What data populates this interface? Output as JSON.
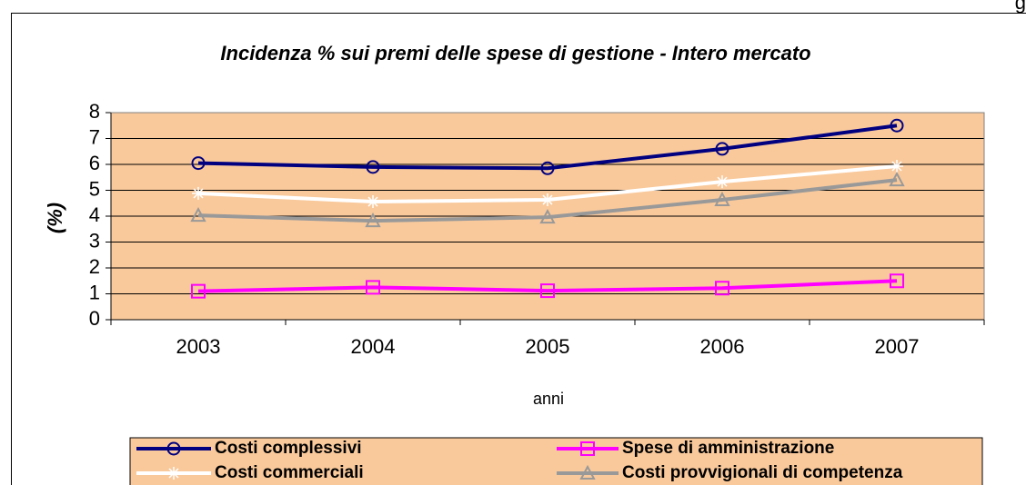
{
  "corner_text": "g",
  "chart_data": {
    "type": "line",
    "title": "Incidenza % sui premi delle spese di gestione - Intero mercato",
    "y_label": "(%)",
    "x_label": "anni",
    "categories": [
      "2003",
      "2004",
      "2005",
      "2006",
      "2007"
    ],
    "series": [
      {
        "name": "Costi complessivi",
        "color": "#000080",
        "marker": "circle",
        "values": [
          6.05,
          5.9,
          5.85,
          6.6,
          7.5
        ]
      },
      {
        "name": "Spese di amministrazione",
        "color": "#ff00ff",
        "marker": "square",
        "values": [
          1.1,
          1.25,
          1.12,
          1.22,
          1.5
        ]
      },
      {
        "name": "Costi commerciali",
        "color": "#ffffff",
        "marker": "star",
        "values": [
          4.88,
          4.56,
          4.63,
          5.33,
          5.93
        ]
      },
      {
        "name": "Costi provvigionali di competenza",
        "color": "#999999",
        "marker": "triangle",
        "values": [
          4.03,
          3.82,
          3.96,
          4.63,
          5.4
        ]
      }
    ],
    "ylim": [
      0,
      8
    ],
    "yticks": [
      0,
      1,
      2,
      3,
      4,
      5,
      6,
      7,
      8
    ],
    "grid": true,
    "plot_background": "#f9c99b",
    "legend": "bottom"
  }
}
